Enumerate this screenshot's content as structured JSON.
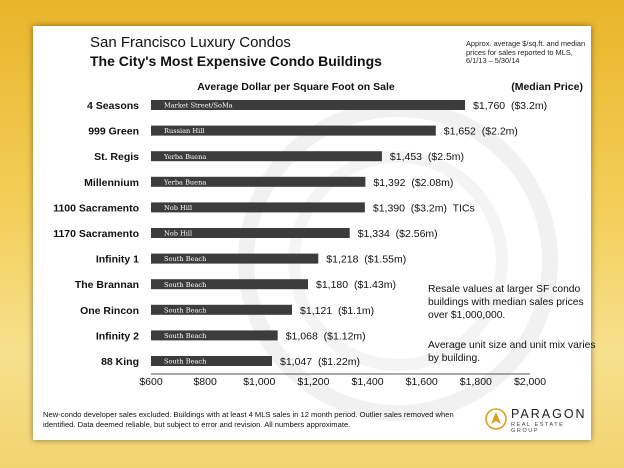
{
  "header": {
    "title": "San Francisco Luxury Condos",
    "subtitle": "The City's Most Expensive Condo Buildings",
    "source_note": "Approx. average $/sq.ft. and median prices for sales reported to MLS, 6/1/13 – 5/30/14"
  },
  "chart_data": {
    "type": "bar",
    "orientation": "horizontal",
    "title": "Average Dollar per Square Foot on Sale",
    "legend_header": "(Median Price)",
    "xlim": [
      600,
      2000
    ],
    "xticks": [
      "$600",
      "$800",
      "$1,000",
      "$1,200",
      "$1,400",
      "$1,600",
      "$1,800",
      "$2,000"
    ],
    "grid": false,
    "bar_color": "#3c3c3c",
    "categories": [
      "4 Seasons",
      "999 Green",
      "St. Regis",
      "Millennium",
      "1100 Sacramento",
      "1170 Sacramento",
      "Infinity 1",
      "The Brannan",
      "One Rincon",
      "Infinity 2",
      "88 King"
    ],
    "values": [
      1760,
      1652,
      1453,
      1392,
      1390,
      1334,
      1218,
      1180,
      1121,
      1068,
      1047
    ],
    "neighborhoods": [
      "Market Street/SoMa",
      "Russian Hill",
      "Yerba Buena",
      "Yerba Buena",
      "Nob Hill",
      "Nob Hill",
      "South Beach",
      "South Beach",
      "South Beach",
      "South Beach",
      "South Beach"
    ],
    "value_labels": [
      "$1,760  ($3.2m)",
      "$1,652  ($2.2m)",
      "$1,453  ($2.5m)",
      "$1,392  ($2.08m)",
      "$1,390  ($3.2m)  TICs",
      "$1,334  ($2.56m)",
      "$1,218  ($1.55m)",
      "$1,180  ($1.43m)",
      "$1,121  ($1.1m)",
      "$1,068  ($1.12m)",
      "$1,047  ($1.22m)"
    ]
  },
  "annotations": {
    "resale_note": "Resale values at larger SF condo buildings with median sales prices over $1,000,000.",
    "unit_note": "Average unit size and unit mix varies by building."
  },
  "footer": {
    "disclaimer": "New-condo developer sales excluded. Buildings with at least 4 MLS sales in 12 month period. Outlier sales removed when identified. Data deemed reliable, but subject to error and revision. All numbers approximate."
  },
  "logo": {
    "name": "PARAGON",
    "tagline": "REAL ESTATE GROUP",
    "icon": "paragon-logo-icon"
  }
}
